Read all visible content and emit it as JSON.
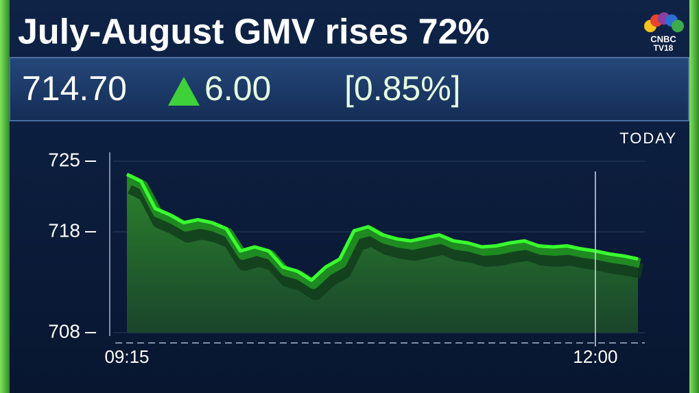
{
  "chart_data": {
    "type": "line",
    "title": "July-August GMV rises 72%",
    "price": "714.70",
    "change": "6.00",
    "change_pct": "[0.85%]",
    "period": "TODAY",
    "logo": {
      "brand": "CNBC",
      "sub": "TV18"
    },
    "categories": [
      "09:15",
      null,
      null,
      null,
      null,
      null,
      null,
      null,
      null,
      null,
      null,
      null,
      null,
      null,
      null,
      null,
      null,
      null,
      null,
      null,
      null,
      null,
      null,
      null,
      null,
      null,
      null,
      null,
      null,
      null,
      null,
      null,
      null,
      "12:00",
      null,
      null,
      null
    ],
    "values": [
      723.7,
      723.0,
      720.3,
      719.7,
      718.9,
      719.2,
      718.9,
      718.3,
      716.1,
      716.5,
      716.1,
      714.5,
      714.1,
      713.2,
      714.5,
      715.3,
      718.1,
      718.5,
      717.7,
      717.3,
      717.1,
      717.4,
      717.7,
      717.1,
      716.9,
      716.5,
      716.6,
      716.9,
      717.1,
      716.6,
      716.5,
      716.6,
      716.3,
      716.1,
      715.8,
      715.6,
      715.3
    ],
    "color": "#39ff2e",
    "ylim": [
      708,
      725
    ],
    "yticks": [
      708,
      718,
      725
    ]
  }
}
